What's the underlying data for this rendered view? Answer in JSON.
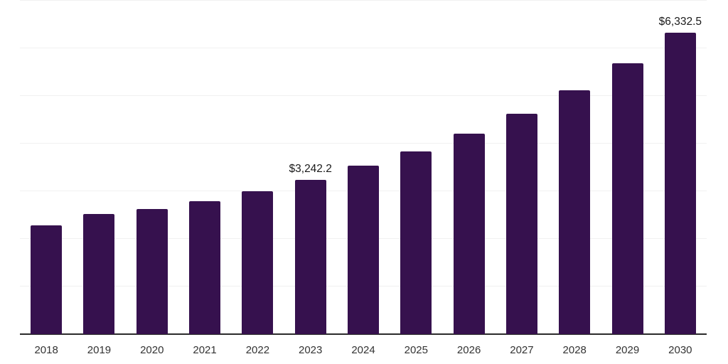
{
  "chart_data": {
    "type": "bar",
    "categories": [
      "2018",
      "2019",
      "2020",
      "2021",
      "2022",
      "2023",
      "2024",
      "2025",
      "2026",
      "2027",
      "2028",
      "2029",
      "2030"
    ],
    "values": [
      2280,
      2520,
      2630,
      2790,
      3000,
      3242.2,
      3540,
      3840,
      4210,
      4630,
      5120,
      5690,
      6332.5
    ],
    "data_labels": {
      "2023": "$3,242.2",
      "2030": "$6,332.5"
    },
    "title": "",
    "xlabel": "",
    "ylabel": "",
    "ylim": [
      0,
      7000
    ],
    "gridline_step": 1000,
    "grid": "horizontal-only",
    "y_tick_labels_visible": false,
    "legend_position": "none",
    "bar_color": "#36114E",
    "gridline_color": "#f1f1f1",
    "axis_line_color": "#2b2b2b",
    "label_text_color": "#1a1a1a",
    "tick_text_color": "#333333",
    "background_color": "#ffffff"
  }
}
